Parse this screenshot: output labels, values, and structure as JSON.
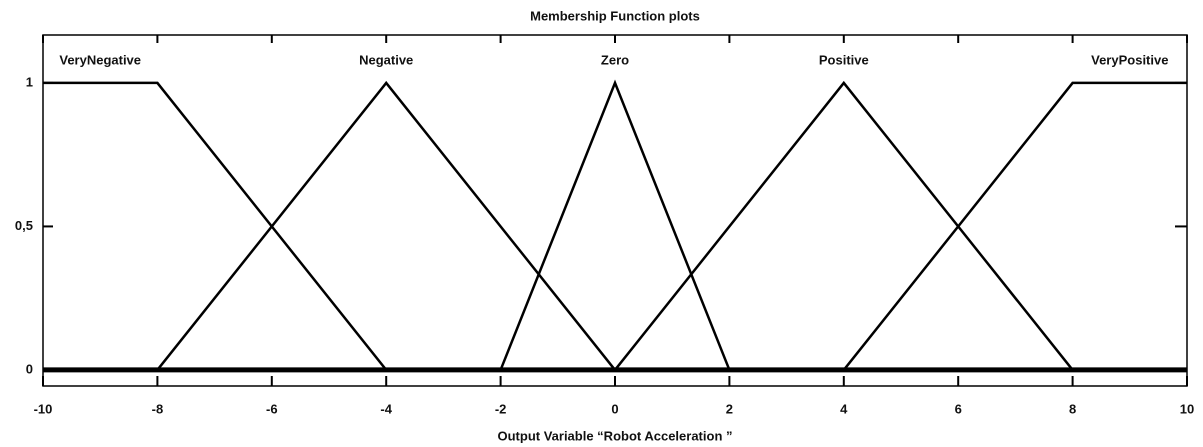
{
  "chart_data": {
    "type": "line",
    "title": "Membership Function plots",
    "xlabel": "Output Variable “Robot Acceleration ”",
    "xlim": [
      -10,
      10
    ],
    "xticks": [
      -10,
      -8,
      -6,
      -4,
      -2,
      0,
      2,
      4,
      6,
      8,
      10
    ],
    "ylim": [
      -0.056,
      1.167
    ],
    "yticks": [
      0,
      {
        "value": 0.5,
        "label": "0,5"
      },
      1
    ],
    "series": [
      {
        "name": "VeryNegative",
        "color": "#000000",
        "x": [
          -10,
          -8,
          -4
        ],
        "values": [
          1,
          1,
          0
        ]
      },
      {
        "name": "Negative",
        "color": "#000000",
        "x": [
          -8,
          -4,
          0
        ],
        "values": [
          0,
          1,
          0
        ]
      },
      {
        "name": "Zero",
        "color": "#000000",
        "x": [
          -2,
          0,
          2
        ],
        "values": [
          0,
          1,
          0
        ]
      },
      {
        "name": "Positive",
        "color": "#000000",
        "x": [
          0,
          4,
          8
        ],
        "values": [
          0,
          1,
          0
        ]
      },
      {
        "name": "VeryPositive",
        "color": "#000000",
        "x": [
          4,
          8,
          10
        ],
        "values": [
          0,
          1,
          1
        ]
      }
    ]
  }
}
